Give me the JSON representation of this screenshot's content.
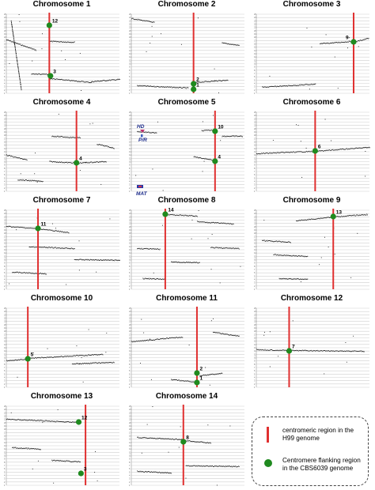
{
  "colors": {
    "grid": "#cfcfcf",
    "centromere": "#e03030",
    "point": "#1f8a1f",
    "dots": "#111111"
  },
  "y_tick_labels": [
    "25",
    "24",
    "23",
    "22",
    "21",
    "20",
    "19",
    "18",
    "17",
    "16",
    "15",
    "14",
    "13",
    "12",
    "11",
    "10",
    "9",
    "8",
    "7",
    "6",
    "5",
    "4",
    "3",
    "2",
    "1"
  ],
  "chart_data": [
    {
      "type": "scatter",
      "title": "Chromosome 1",
      "centromere_x": 0.38,
      "segments": [
        [
          0.0,
          0.32,
          0.26,
          0.45
        ],
        [
          0.04,
          0.08,
          0.13,
          0.95
        ],
        [
          0.38,
          0.34,
          0.6,
          0.35
        ],
        [
          0.22,
          0.75,
          0.4,
          0.76
        ],
        [
          0.38,
          0.81,
          0.75,
          0.86
        ],
        [
          0.75,
          0.85,
          1.0,
          0.82
        ]
      ],
      "markers": [
        {
          "label": "12",
          "x": 0.38,
          "y": 0.14
        },
        {
          "label": "3",
          "x": 0.39,
          "y": 0.78
        }
      ]
    },
    {
      "type": "scatter",
      "title": "Chromosome 2",
      "centromere_x": 0.55,
      "segments": [
        [
          0.0,
          0.05,
          0.2,
          0.1
        ],
        [
          0.8,
          0.36,
          0.95,
          0.39
        ],
        [
          0.05,
          0.9,
          0.5,
          0.93
        ],
        [
          0.55,
          0.86,
          0.85,
          0.83
        ]
      ],
      "markers": [
        {
          "label": "2",
          "x": 0.55,
          "y": 0.88
        },
        {
          "label": "1",
          "x": 0.55,
          "y": 0.95
        }
      ]
    },
    {
      "type": "scatter",
      "title": "Chromosome 3",
      "centromere_x": 0.86,
      "segments": [
        [
          0.56,
          0.37,
          0.84,
          0.34
        ],
        [
          0.86,
          0.35,
          0.99,
          0.3
        ],
        [
          0.05,
          0.92,
          0.52,
          0.88
        ]
      ],
      "markers": [
        {
          "label": "9",
          "x": 0.86,
          "y": 0.35
        }
      ]
    },
    {
      "type": "scatter",
      "title": "Chromosome 4",
      "centromere_x": 0.62,
      "segments": [
        [
          0.0,
          0.54,
          0.18,
          0.6
        ],
        [
          0.38,
          0.62,
          0.62,
          0.64
        ],
        [
          0.62,
          0.64,
          0.88,
          0.62
        ],
        [
          0.1,
          0.85,
          0.32,
          0.87
        ],
        [
          0.4,
          0.3,
          0.65,
          0.32
        ],
        [
          0.8,
          0.4,
          0.95,
          0.45
        ]
      ],
      "markers": [
        {
          "label": "4",
          "x": 0.62,
          "y": 0.64
        }
      ]
    },
    {
      "type": "scatter",
      "title": "Chromosome 5",
      "centromere_x": 0.74,
      "segments": [
        [
          0.05,
          0.24,
          0.22,
          0.26
        ],
        [
          0.62,
          0.23,
          0.74,
          0.22
        ],
        [
          0.8,
          0.3,
          0.98,
          0.3
        ],
        [
          0.55,
          0.56,
          0.72,
          0.6
        ]
      ],
      "markers": [
        {
          "label": "10",
          "x": 0.74,
          "y": 0.24
        },
        {
          "label": "4",
          "x": 0.74,
          "y": 0.62
        }
      ]
    },
    {
      "type": "scatter",
      "title": "Chromosome 6",
      "centromere_x": 0.52,
      "segments": [
        [
          0.0,
          0.52,
          0.52,
          0.49
        ],
        [
          0.52,
          0.49,
          1.0,
          0.44
        ]
      ],
      "markers": [
        {
          "label": "6",
          "x": 0.52,
          "y": 0.49
        }
      ]
    },
    {
      "type": "scatter",
      "title": "Chromosome 7",
      "centromere_x": 0.28,
      "segments": [
        [
          0.0,
          0.2,
          0.28,
          0.23
        ],
        [
          0.28,
          0.23,
          0.55,
          0.28
        ],
        [
          0.2,
          0.46,
          0.6,
          0.48
        ],
        [
          0.6,
          0.62,
          1.0,
          0.63
        ],
        [
          0.05,
          0.78,
          0.35,
          0.8
        ]
      ],
      "markers": [
        {
          "label": "11",
          "x": 0.28,
          "y": 0.23
        }
      ]
    },
    {
      "type": "scatter",
      "title": "Chromosome 8",
      "centromere_x": 0.3,
      "segments": [
        [
          0.3,
          0.05,
          0.58,
          0.07
        ],
        [
          0.58,
          0.14,
          0.9,
          0.17
        ],
        [
          0.05,
          0.48,
          0.25,
          0.49
        ],
        [
          0.35,
          0.65,
          0.6,
          0.66
        ],
        [
          0.7,
          0.47,
          0.95,
          0.48
        ],
        [
          0.1,
          0.86,
          0.3,
          0.87
        ]
      ],
      "markers": [
        {
          "label": "14",
          "x": 0.3,
          "y": 0.05
        }
      ]
    },
    {
      "type": "scatter",
      "title": "Chromosome 9",
      "centromere_x": 0.68,
      "segments": [
        [
          0.35,
          0.13,
          0.68,
          0.08
        ],
        [
          0.68,
          0.08,
          0.98,
          0.05
        ],
        [
          0.05,
          0.38,
          0.3,
          0.4
        ],
        [
          0.15,
          0.56,
          0.45,
          0.58
        ],
        [
          0.2,
          0.86,
          0.45,
          0.87
        ]
      ],
      "markers": [
        {
          "label": "13",
          "x": 0.68,
          "y": 0.08
        }
      ]
    },
    {
      "type": "scatter",
      "title": "Chromosome 10",
      "centromere_x": 0.19,
      "segments": [
        [
          0.19,
          0.63,
          0.85,
          0.58
        ],
        [
          0.58,
          0.7,
          0.95,
          0.68
        ],
        [
          0.0,
          0.66,
          0.19,
          0.64
        ]
      ],
      "markers": [
        {
          "label": "5",
          "x": 0.19,
          "y": 0.64
        }
      ]
    },
    {
      "type": "scatter",
      "title": "Chromosome 11",
      "centromere_x": 0.58,
      "segments": [
        [
          0.0,
          0.42,
          0.45,
          0.36
        ],
        [
          0.72,
          0.3,
          0.95,
          0.35
        ],
        [
          0.35,
          0.9,
          0.58,
          0.93
        ],
        [
          0.6,
          0.85,
          0.8,
          0.82
        ]
      ],
      "markers": [
        {
          "label": "2",
          "x": 0.58,
          "y": 0.82
        },
        {
          "label": "1",
          "x": 0.58,
          "y": 0.94
        }
      ]
    },
    {
      "type": "scatter",
      "title": "Chromosome 12",
      "centromere_x": 0.29,
      "segments": [
        [
          0.29,
          0.53,
          0.95,
          0.54
        ],
        [
          0.0,
          0.52,
          0.29,
          0.53
        ]
      ],
      "markers": [
        {
          "label": "7",
          "x": 0.29,
          "y": 0.54
        }
      ]
    },
    {
      "type": "scatter",
      "title": "Chromosome 13",
      "centromere_x": 0.7,
      "segments": [
        [
          0.0,
          0.16,
          0.62,
          0.2
        ],
        [
          0.05,
          0.52,
          0.3,
          0.54
        ],
        [
          0.4,
          0.68,
          0.65,
          0.7
        ]
      ],
      "markers": [
        {
          "label": "12",
          "x": 0.64,
          "y": 0.2
        },
        {
          "label": "3",
          "x": 0.66,
          "y": 0.85
        }
      ]
    },
    {
      "type": "scatter",
      "title": "Chromosome 14",
      "centromere_x": 0.46,
      "segments": [
        [
          0.05,
          0.39,
          0.46,
          0.42
        ],
        [
          0.46,
          0.43,
          0.7,
          0.46
        ],
        [
          0.48,
          0.75,
          0.95,
          0.76
        ],
        [
          0.05,
          0.82,
          0.35,
          0.84
        ]
      ],
      "markers": [
        {
          "label": "8",
          "x": 0.46,
          "y": 0.45
        }
      ]
    }
  ],
  "annotations": {
    "hd": "HD",
    "pr": "P/R",
    "mat": "MAT"
  },
  "legend": {
    "centromere_text": "centromeric region in the H99 genome",
    "flank_text": "Centromere flanking region in the CBS6039 genome"
  }
}
